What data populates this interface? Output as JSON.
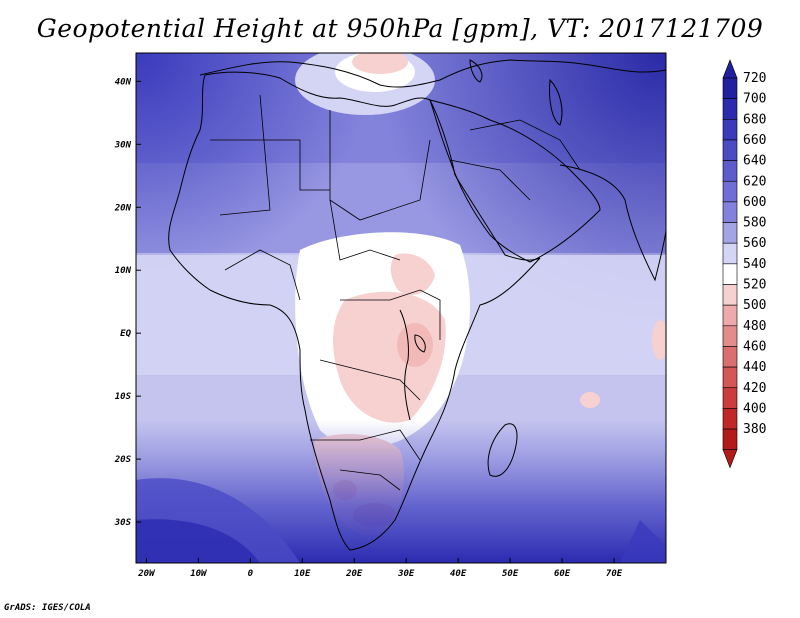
{
  "title": "Geopotential Height at 950hPa [gpm], VT: 2017121709",
  "footer": "GrADS: IGES/COLA",
  "map": {
    "lat_labels": [
      "40N",
      "30N",
      "20N",
      "10N",
      "EQ",
      "10S",
      "20S",
      "30S"
    ],
    "lat_values": [
      40,
      30,
      20,
      10,
      0,
      -10,
      -20,
      -30
    ],
    "lon_labels": [
      "20W",
      "10W",
      "0",
      "10E",
      "20E",
      "30E",
      "40E",
      "50E",
      "60E",
      "70E"
    ],
    "lon_values": [
      -20,
      -10,
      0,
      10,
      20,
      30,
      40,
      50,
      60,
      70
    ],
    "lat_range": [
      -36.5,
      44.5
    ],
    "lon_range": [
      -22,
      80
    ]
  },
  "colorbar": {
    "labels": [
      "720",
      "700",
      "680",
      "660",
      "640",
      "620",
      "600",
      "580",
      "560",
      "540",
      "520",
      "500",
      "480",
      "460",
      "440",
      "420",
      "400",
      "380"
    ],
    "colors": [
      "#2020a0",
      "#2b2bb0",
      "#3a3abd",
      "#4b4bc6",
      "#5c5ccd",
      "#6e6ed6",
      "#8282dc",
      "#a3a3e6",
      "#d4d4f5",
      "#ffffff",
      "#f7d0d0",
      "#eeaaaa",
      "#e48b8b",
      "#db6e6e",
      "#d45656",
      "#cc3c3c",
      "#c02828",
      "#b31b1b"
    ]
  }
}
